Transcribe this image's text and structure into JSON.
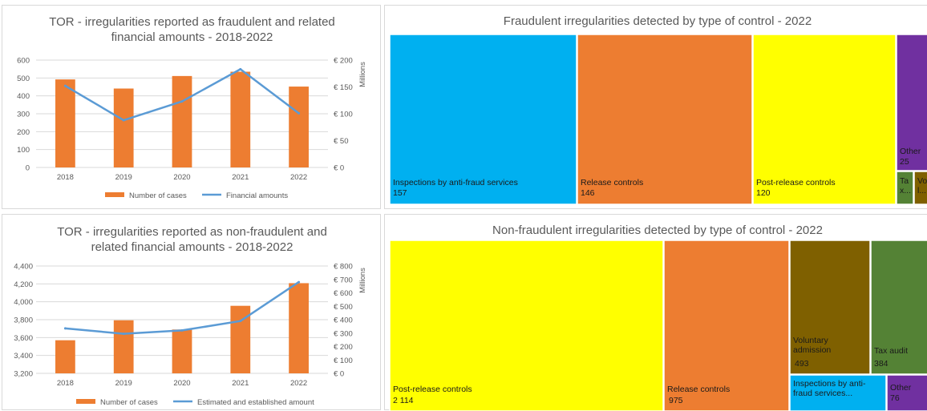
{
  "colors": {
    "bar": "#ED7D31",
    "line": "#5B9BD5",
    "blue": "#00B0F0",
    "orange": "#ED7D31",
    "yellow": "#FFFF00",
    "purple": "#7030A0",
    "green": "#548235",
    "brown": "#7F6000"
  },
  "chart_data": [
    {
      "type": "bar",
      "title_lines": [
        "TOR - irregularities reported as fraudulent and related",
        "financial amounts - 2018-2022"
      ],
      "categories": [
        "2018",
        "2019",
        "2020",
        "2021",
        "2022"
      ],
      "ylim_left": [
        0,
        600
      ],
      "left_ticks": [
        "0",
        "100",
        "200",
        "300",
        "400",
        "500",
        "600"
      ],
      "ylim_right": [
        0,
        200
      ],
      "right_ticks": [
        "€ 0",
        "€ 50",
        "€ 100",
        "€ 150",
        "€ 200"
      ],
      "right_axis_label": "Millions",
      "series": [
        {
          "name": "Number of cases",
          "kind": "bar",
          "axis": "left",
          "values": [
            492,
            441,
            511,
            535,
            452
          ]
        },
        {
          "name": "Financial amounts",
          "kind": "line",
          "axis": "right",
          "values": [
            152,
            88,
            123,
            183,
            101
          ]
        }
      ],
      "grid": true,
      "legend": "bottom"
    },
    {
      "type": "treemap",
      "title": "Fraudulent irregularities detected by type of control - 2022",
      "items": [
        {
          "label": "Inspections by anti-fraud services",
          "value": "157",
          "color": "blue"
        },
        {
          "label": "Release controls",
          "value": "146",
          "color": "orange"
        },
        {
          "label": "Post-release controls",
          "value": "120",
          "color": "yellow"
        },
        {
          "label": "Other",
          "value": "25",
          "color": "purple"
        },
        {
          "label": "Ta x...",
          "value": "",
          "color": "green"
        },
        {
          "label": "Vo l...",
          "value": "",
          "color": "brown"
        }
      ]
    },
    {
      "type": "bar",
      "title_lines": [
        "TOR - irregularities reported as non-fraudulent and",
        "related financial amounts - 2018-2022"
      ],
      "categories": [
        "2018",
        "2019",
        "2020",
        "2021",
        "2022"
      ],
      "ylim_left": [
        3200,
        4400
      ],
      "left_ticks": [
        "3,200",
        "3,400",
        "3,600",
        "3,800",
        "4,000",
        "4,200",
        "4,400"
      ],
      "ylim_right": [
        0,
        800
      ],
      "right_ticks": [
        "€ 0",
        "€ 100",
        "€ 200",
        "€ 300",
        "€ 400",
        "€ 500",
        "€ 600",
        "€ 700",
        "€ 800"
      ],
      "right_axis_label": "Millions",
      "series": [
        {
          "name": "Number of cases",
          "kind": "bar",
          "axis": "left",
          "values": [
            3570,
            3793,
            3690,
            3955,
            4208
          ]
        },
        {
          "name": "Estimated and established amount",
          "kind": "line",
          "axis": "right",
          "values": [
            335,
            295,
            320,
            390,
            680
          ]
        }
      ],
      "grid": true,
      "legend": "bottom"
    },
    {
      "type": "treemap",
      "title": "Non-fraudulent irregularities detected by type of control - 2022",
      "items": [
        {
          "label": "Post-release controls",
          "value": "2 114",
          "color": "yellow"
        },
        {
          "label": "Release controls",
          "value": "975",
          "color": "orange"
        },
        {
          "label": "Voluntary admission",
          "value": "493",
          "color": "brown"
        },
        {
          "label": "Tax audit",
          "value": "384",
          "color": "green"
        },
        {
          "label": "Inspections by anti-fraud services...",
          "value": "",
          "color": "blue"
        },
        {
          "label": "Other",
          "value": "76",
          "color": "purple"
        }
      ]
    }
  ]
}
